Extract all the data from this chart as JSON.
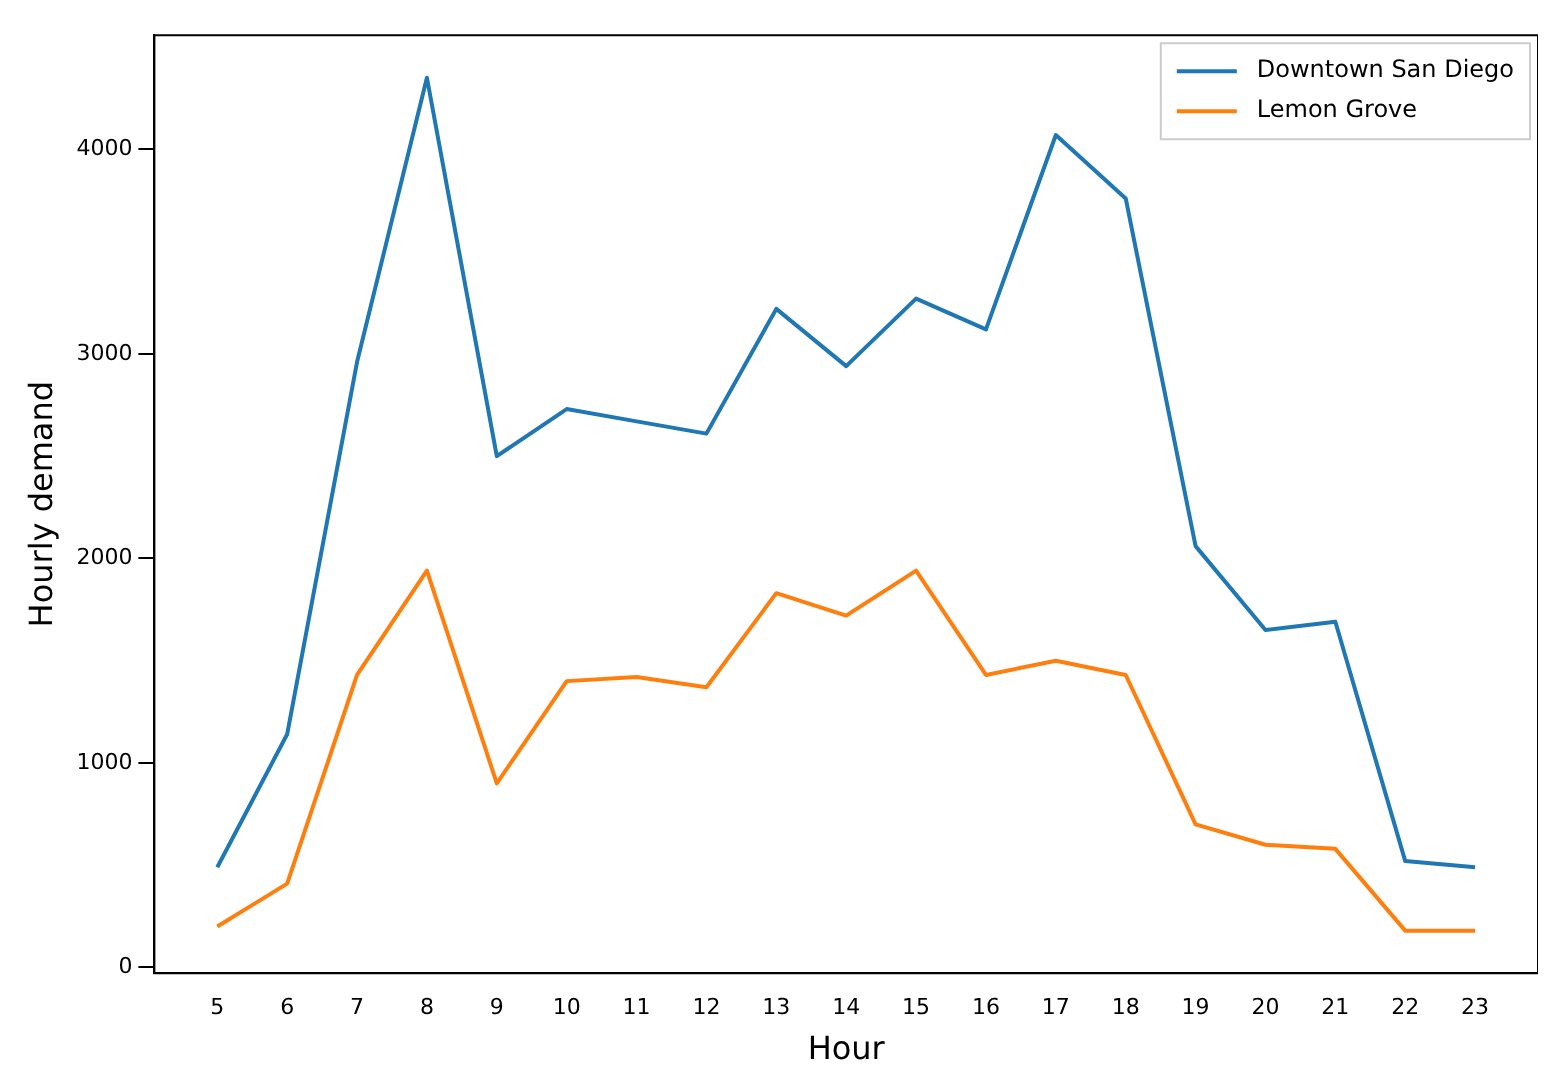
{
  "chart_data": {
    "type": "line",
    "xlabel": "Hour",
    "ylabel": "Hourly demand",
    "x": [
      5,
      6,
      7,
      8,
      9,
      10,
      11,
      12,
      13,
      14,
      15,
      16,
      17,
      18,
      19,
      20,
      21,
      22,
      23
    ],
    "series": [
      {
        "name": "Downtown San Diego",
        "color": "#1f77b4",
        "values": [
          490,
          1140,
          2960,
          4350,
          2500,
          2730,
          2670,
          2610,
          3220,
          2940,
          3270,
          3120,
          4070,
          3760,
          2060,
          1650,
          1690,
          520,
          490
        ]
      },
      {
        "name": "Lemon Grove",
        "color": "#ff7f0e",
        "values": [
          200,
          410,
          1430,
          1940,
          900,
          1400,
          1420,
          1370,
          1830,
          1720,
          1940,
          1430,
          1500,
          1430,
          700,
          600,
          580,
          180,
          180
        ]
      }
    ],
    "xlim": [
      4.1,
      23.9
    ],
    "xticks": [
      5,
      6,
      7,
      8,
      9,
      10,
      11,
      12,
      13,
      14,
      15,
      16,
      17,
      18,
      19,
      20,
      21,
      22,
      23
    ],
    "ylim": [
      -28,
      4558
    ],
    "yticks": [
      0,
      1000,
      2000,
      3000,
      4000
    ],
    "grid": false,
    "legend": "top right",
    "marker": "none",
    "line_style": "solid"
  }
}
